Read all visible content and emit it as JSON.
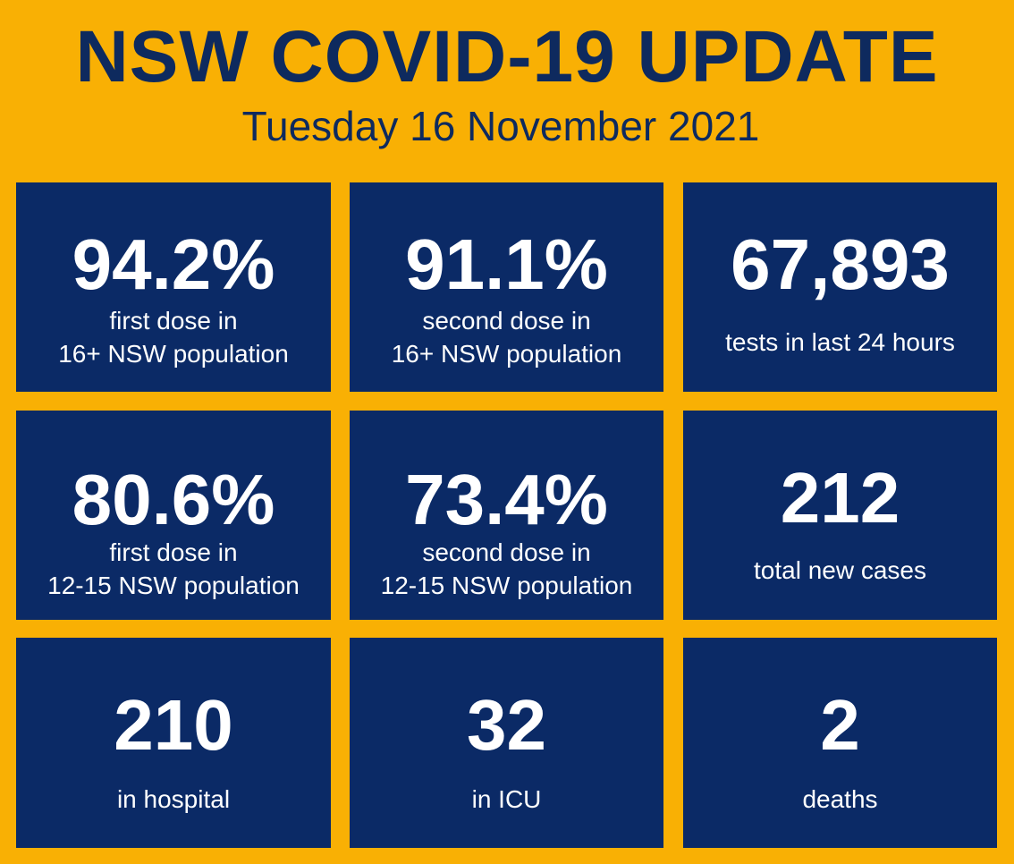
{
  "header": {
    "title": "NSW COVID-19 UPDATE",
    "date": "Tuesday 16 November 2021"
  },
  "tiles": [
    {
      "value": "94.2%",
      "label": "first dose in\n16+ NSW population"
    },
    {
      "value": "91.1%",
      "label": "second dose in\n16+ NSW population"
    },
    {
      "value": "67,893",
      "label": "tests in last 24 hours"
    },
    {
      "value": "80.6%",
      "label": "first dose in\n12-15 NSW population"
    },
    {
      "value": "73.4%",
      "label": "second dose in\n12-15 NSW population"
    },
    {
      "value": "212",
      "label": "total new cases"
    },
    {
      "value": "210",
      "label": "in hospital"
    },
    {
      "value": "32",
      "label": "in ICU"
    },
    {
      "value": "2",
      "label": "deaths"
    }
  ],
  "colors": {
    "background": "#F9B004",
    "tile": "#0B2A66",
    "title_text": "#0E2A5E",
    "tile_text": "#FFFFFF"
  }
}
